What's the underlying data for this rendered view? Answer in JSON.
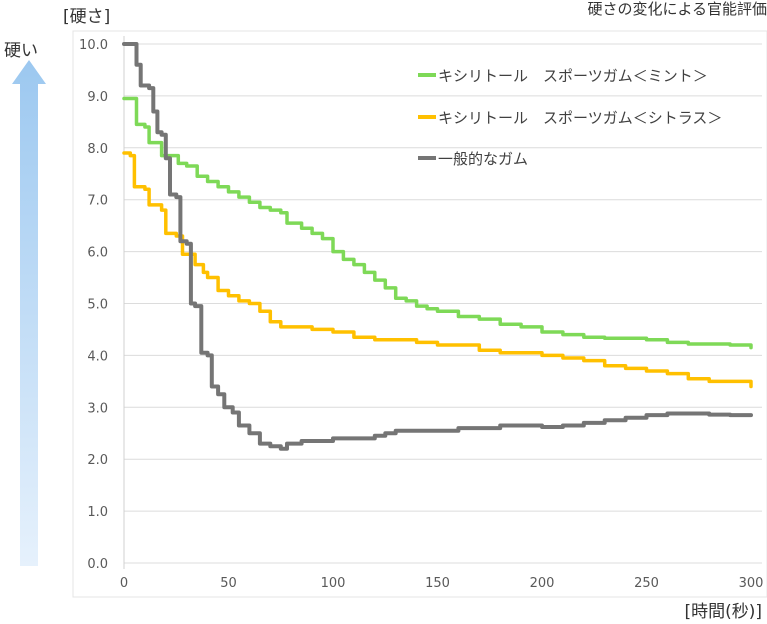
{
  "chart_data": {
    "type": "line",
    "title": "",
    "top_note": "硬さの変化による官能評価",
    "ylabel": "[硬さ]",
    "xlabel": "[時間(秒)]",
    "side_label": "硬い",
    "xlim": [
      0,
      300
    ],
    "ylim": [
      0,
      10
    ],
    "xticks": [
      "0",
      "50",
      "100",
      "150",
      "200",
      "250",
      "300"
    ],
    "yticks": [
      "0.0",
      "1.0",
      "2.0",
      "3.0",
      "4.0",
      "5.0",
      "6.0",
      "7.0",
      "8.0",
      "9.0",
      "10.0"
    ],
    "grid": "horizontal",
    "legend_position": "top-right",
    "series": [
      {
        "name": "キシリトール　スポーツガム＜ミント＞",
        "color": "#7ED957",
        "points": [
          [
            0,
            8.95
          ],
          [
            4,
            8.95
          ],
          [
            6,
            8.45
          ],
          [
            10,
            8.4
          ],
          [
            12,
            8.1
          ],
          [
            16,
            8.1
          ],
          [
            18,
            7.85
          ],
          [
            24,
            7.85
          ],
          [
            26,
            7.7
          ],
          [
            30,
            7.65
          ],
          [
            35,
            7.45
          ],
          [
            40,
            7.35
          ],
          [
            45,
            7.25
          ],
          [
            50,
            7.15
          ],
          [
            55,
            7.05
          ],
          [
            60,
            6.95
          ],
          [
            65,
            6.85
          ],
          [
            70,
            6.8
          ],
          [
            75,
            6.75
          ],
          [
            78,
            6.55
          ],
          [
            85,
            6.45
          ],
          [
            90,
            6.35
          ],
          [
            95,
            6.25
          ],
          [
            100,
            6.0
          ],
          [
            105,
            5.85
          ],
          [
            110,
            5.75
          ],
          [
            115,
            5.6
          ],
          [
            120,
            5.45
          ],
          [
            125,
            5.3
          ],
          [
            130,
            5.1
          ],
          [
            135,
            5.05
          ],
          [
            140,
            4.95
          ],
          [
            145,
            4.9
          ],
          [
            150,
            4.85
          ],
          [
            160,
            4.75
          ],
          [
            170,
            4.7
          ],
          [
            180,
            4.6
          ],
          [
            190,
            4.55
          ],
          [
            200,
            4.45
          ],
          [
            210,
            4.4
          ],
          [
            220,
            4.35
          ],
          [
            230,
            4.33
          ],
          [
            240,
            4.33
          ],
          [
            250,
            4.3
          ],
          [
            260,
            4.25
          ],
          [
            270,
            4.22
          ],
          [
            280,
            4.22
          ],
          [
            290,
            4.2
          ],
          [
            300,
            4.15
          ]
        ]
      },
      {
        "name": "キシリトール　スポーツガム＜シトラス＞",
        "color": "#FFC000",
        "points": [
          [
            0,
            7.9
          ],
          [
            3,
            7.85
          ],
          [
            5,
            7.25
          ],
          [
            10,
            7.2
          ],
          [
            12,
            6.9
          ],
          [
            18,
            6.8
          ],
          [
            20,
            6.35
          ],
          [
            25,
            6.3
          ],
          [
            28,
            5.95
          ],
          [
            32,
            5.95
          ],
          [
            34,
            5.75
          ],
          [
            38,
            5.6
          ],
          [
            40,
            5.5
          ],
          [
            45,
            5.25
          ],
          [
            50,
            5.15
          ],
          [
            55,
            5.05
          ],
          [
            60,
            5.0
          ],
          [
            65,
            4.85
          ],
          [
            70,
            4.65
          ],
          [
            75,
            4.55
          ],
          [
            80,
            4.55
          ],
          [
            90,
            4.5
          ],
          [
            100,
            4.45
          ],
          [
            110,
            4.35
          ],
          [
            120,
            4.3
          ],
          [
            130,
            4.3
          ],
          [
            140,
            4.25
          ],
          [
            150,
            4.2
          ],
          [
            160,
            4.2
          ],
          [
            170,
            4.1
          ],
          [
            180,
            4.05
          ],
          [
            190,
            4.05
          ],
          [
            200,
            4.0
          ],
          [
            210,
            3.95
          ],
          [
            220,
            3.9
          ],
          [
            230,
            3.8
          ],
          [
            240,
            3.75
          ],
          [
            250,
            3.7
          ],
          [
            260,
            3.65
          ],
          [
            270,
            3.55
          ],
          [
            280,
            3.5
          ],
          [
            290,
            3.5
          ],
          [
            298,
            3.5
          ],
          [
            300,
            3.4
          ]
        ]
      },
      {
        "name": "一般的なガム",
        "color": "#757575",
        "points": [
          [
            0,
            10.0
          ],
          [
            4,
            10.0
          ],
          [
            6,
            9.6
          ],
          [
            8,
            9.2
          ],
          [
            12,
            9.15
          ],
          [
            14,
            8.7
          ],
          [
            16,
            8.3
          ],
          [
            18,
            8.25
          ],
          [
            20,
            7.8
          ],
          [
            22,
            7.1
          ],
          [
            25,
            7.05
          ],
          [
            27,
            6.2
          ],
          [
            30,
            6.15
          ],
          [
            32,
            5.0
          ],
          [
            34,
            4.95
          ],
          [
            37,
            4.05
          ],
          [
            40,
            4.0
          ],
          [
            42,
            3.4
          ],
          [
            45,
            3.25
          ],
          [
            48,
            3.0
          ],
          [
            52,
            2.9
          ],
          [
            55,
            2.65
          ],
          [
            60,
            2.5
          ],
          [
            65,
            2.3
          ],
          [
            70,
            2.25
          ],
          [
            75,
            2.2
          ],
          [
            78,
            2.3
          ],
          [
            85,
            2.35
          ],
          [
            90,
            2.35
          ],
          [
            100,
            2.4
          ],
          [
            110,
            2.4
          ],
          [
            120,
            2.45
          ],
          [
            125,
            2.5
          ],
          [
            130,
            2.55
          ],
          [
            140,
            2.55
          ],
          [
            150,
            2.55
          ],
          [
            160,
            2.6
          ],
          [
            170,
            2.6
          ],
          [
            180,
            2.65
          ],
          [
            190,
            2.65
          ],
          [
            200,
            2.62
          ],
          [
            210,
            2.65
          ],
          [
            220,
            2.7
          ],
          [
            230,
            2.75
          ],
          [
            240,
            2.8
          ],
          [
            250,
            2.85
          ],
          [
            260,
            2.88
          ],
          [
            270,
            2.88
          ],
          [
            280,
            2.86
          ],
          [
            290,
            2.85
          ],
          [
            300,
            2.85
          ]
        ]
      }
    ]
  }
}
